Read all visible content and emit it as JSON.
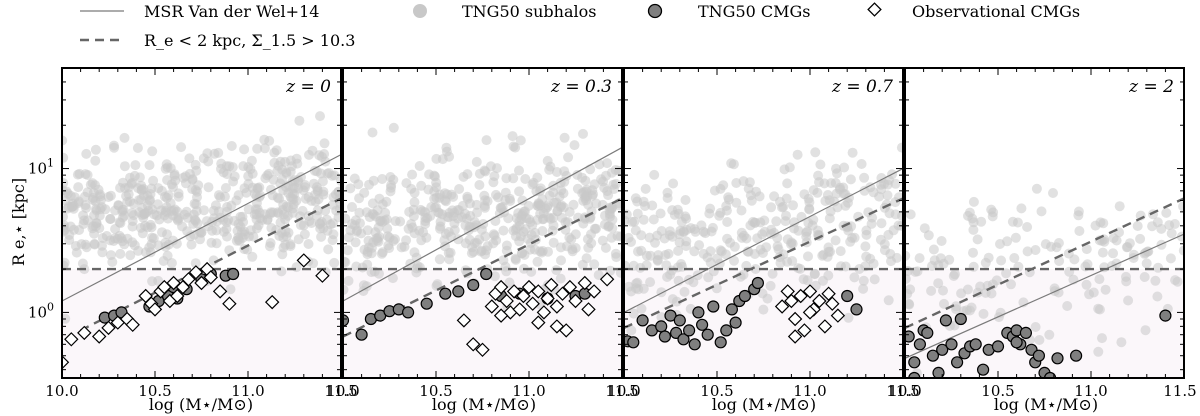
{
  "legend": {
    "msr_label": "MSR Van der Wel+14",
    "cut_label": "R_e < 2 kpc, Σ_1.5 > 10.3",
    "subhalos_label": "TNG50 subhalos",
    "tng_cmg_label": "TNG50 CMGs",
    "obs_cmg_label": "Observational CMGs"
  },
  "axes": {
    "xlabel": "log (M⋆/M⊙)",
    "ylabel": "R e,⋆ [kpc]"
  },
  "colors": {
    "subhalos": "#c8c8c8",
    "tng_cmg_fill": "#7f7f7f",
    "obs_cmg_fill": "#ffffff",
    "msr_line": "#7a7a7a",
    "cut_line": "#666666",
    "compact_region": "#fbf7fa"
  },
  "chart_data": [
    {
      "type": "scatter",
      "panel_label": "z = 0",
      "xlim": [
        10.0,
        11.5
      ],
      "ylim": [
        0.35,
        50
      ],
      "yscale": "log",
      "xticks": [
        "10.0",
        "10.5",
        "11.0"
      ],
      "yticks": [
        "10^0",
        "10^1"
      ],
      "msr_line": [
        [
          10.0,
          1.2
        ],
        [
          11.5,
          12.5
        ]
      ],
      "cut_line": [
        [
          10.1,
          0.75
        ],
        [
          11.5,
          6.2
        ]
      ],
      "tng_cmg": [
        [
          10.23,
          0.92
        ],
        [
          10.28,
          0.95
        ],
        [
          10.32,
          1.0
        ],
        [
          10.47,
          1.1
        ],
        [
          10.52,
          1.2
        ],
        [
          10.57,
          1.3
        ],
        [
          10.62,
          1.25
        ],
        [
          10.67,
          1.45
        ],
        [
          10.75,
          1.7
        ],
        [
          10.8,
          1.85
        ],
        [
          10.88,
          1.8
        ],
        [
          10.92,
          1.85
        ],
        [
          10.6,
          1.5
        ]
      ],
      "obs_cmg": [
        [
          10.0,
          0.45
        ],
        [
          10.05,
          0.65
        ],
        [
          10.12,
          0.72
        ],
        [
          10.2,
          0.68
        ],
        [
          10.25,
          0.78
        ],
        [
          10.3,
          0.85
        ],
        [
          10.35,
          0.9
        ],
        [
          10.38,
          0.82
        ],
        [
          10.45,
          1.3
        ],
        [
          10.48,
          1.15
        ],
        [
          10.5,
          1.05
        ],
        [
          10.53,
          1.4
        ],
        [
          10.55,
          1.5
        ],
        [
          10.58,
          1.2
        ],
        [
          10.6,
          1.6
        ],
        [
          10.62,
          1.3
        ],
        [
          10.65,
          1.5
        ],
        [
          10.68,
          1.7
        ],
        [
          10.72,
          1.9
        ],
        [
          10.75,
          1.6
        ],
        [
          10.78,
          2.0
        ],
        [
          10.8,
          1.75
        ],
        [
          10.85,
          1.4
        ],
        [
          10.9,
          1.15
        ],
        [
          11.13,
          1.18
        ],
        [
          11.3,
          2.3
        ],
        [
          11.4,
          1.8
        ]
      ]
    },
    {
      "type": "scatter",
      "panel_label": "z = 0.3",
      "xlim": [
        10.0,
        11.5
      ],
      "ylim": [
        0.35,
        50
      ],
      "yscale": "log",
      "xticks": [
        "10.0",
        "10.5",
        "11.0"
      ],
      "yticks": [
        "10^0",
        "10^1"
      ],
      "msr_line": [
        [
          10.0,
          1.2
        ],
        [
          11.5,
          14.0
        ]
      ],
      "cut_line": [
        [
          10.0,
          0.68
        ],
        [
          11.5,
          6.2
        ]
      ],
      "tng_cmg": [
        [
          10.0,
          0.88
        ],
        [
          10.1,
          0.7
        ],
        [
          10.15,
          0.9
        ],
        [
          10.2,
          0.95
        ],
        [
          10.25,
          1.02
        ],
        [
          10.3,
          1.05
        ],
        [
          10.35,
          1.0
        ],
        [
          10.45,
          1.15
        ],
        [
          10.55,
          1.35
        ],
        [
          10.62,
          1.4
        ],
        [
          10.7,
          1.55
        ],
        [
          10.77,
          1.85
        ],
        [
          10.85,
          1.3
        ],
        [
          10.95,
          1.35
        ],
        [
          11.1,
          1.25
        ],
        [
          11.25,
          1.3
        ],
        [
          11.3,
          1.35
        ]
      ],
      "obs_cmg": [
        [
          10.65,
          0.88
        ],
        [
          10.7,
          0.6
        ],
        [
          10.75,
          0.55
        ],
        [
          10.8,
          1.1
        ],
        [
          10.82,
          1.35
        ],
        [
          10.85,
          1.5
        ],
        [
          10.88,
          1.2
        ],
        [
          10.9,
          1.0
        ],
        [
          10.92,
          1.4
        ],
        [
          10.95,
          1.05
        ],
        [
          10.97,
          1.3
        ],
        [
          11.0,
          1.5
        ],
        [
          11.02,
          1.15
        ],
        [
          11.05,
          1.4
        ],
        [
          11.08,
          1.0
        ],
        [
          11.1,
          1.25
        ],
        [
          11.12,
          1.55
        ],
        [
          11.15,
          1.1
        ],
        [
          11.18,
          1.35
        ],
        [
          11.2,
          0.75
        ],
        [
          11.22,
          1.5
        ],
        [
          11.25,
          1.2
        ],
        [
          11.3,
          1.6
        ],
        [
          11.32,
          1.05
        ],
        [
          11.35,
          1.4
        ],
        [
          11.42,
          1.7
        ],
        [
          10.85,
          0.95
        ],
        [
          11.05,
          0.85
        ],
        [
          11.15,
          0.8
        ]
      ]
    },
    {
      "type": "scatter",
      "panel_label": "z = 0.7",
      "xlim": [
        10.0,
        11.5
      ],
      "ylim": [
        0.35,
        50
      ],
      "yscale": "log",
      "xticks": [
        "10.0",
        "10.5",
        "11.0"
      ],
      "yticks": [
        "10^0",
        "10^1"
      ],
      "msr_line": [
        [
          10.0,
          1.0
        ],
        [
          11.5,
          10.0
        ]
      ],
      "cut_line": [
        [
          10.0,
          0.78
        ],
        [
          11.5,
          6.2
        ]
      ],
      "tng_cmg": [
        [
          10.02,
          0.63
        ],
        [
          10.05,
          0.62
        ],
        [
          10.1,
          0.88
        ],
        [
          10.15,
          0.75
        ],
        [
          10.2,
          0.8
        ],
        [
          10.22,
          0.68
        ],
        [
          10.25,
          0.95
        ],
        [
          10.28,
          0.72
        ],
        [
          10.3,
          0.88
        ],
        [
          10.32,
          0.65
        ],
        [
          10.35,
          0.75
        ],
        [
          10.38,
          0.6
        ],
        [
          10.4,
          1.0
        ],
        [
          10.42,
          0.82
        ],
        [
          10.45,
          0.7
        ],
        [
          10.48,
          1.1
        ],
        [
          10.52,
          0.62
        ],
        [
          10.55,
          0.75
        ],
        [
          10.58,
          1.05
        ],
        [
          10.62,
          1.2
        ],
        [
          10.65,
          1.3
        ],
        [
          10.7,
          1.45
        ],
        [
          10.72,
          1.6
        ],
        [
          10.6,
          0.85
        ],
        [
          11.2,
          1.3
        ],
        [
          11.25,
          1.05
        ]
      ],
      "obs_cmg": [
        [
          10.85,
          1.1
        ],
        [
          10.88,
          1.4
        ],
        [
          10.9,
          1.2
        ],
        [
          10.92,
          0.9
        ],
        [
          10.95,
          1.3
        ],
        [
          10.97,
          0.75
        ],
        [
          11.0,
          1.4
        ],
        [
          11.02,
          1.05
        ],
        [
          11.05,
          1.2
        ],
        [
          11.08,
          0.8
        ],
        [
          10.92,
          0.68
        ],
        [
          11.1,
          1.35
        ],
        [
          11.12,
          1.15
        ],
        [
          11.15,
          0.95
        ],
        [
          11.0,
          1.0
        ]
      ]
    },
    {
      "type": "scatter",
      "panel_label": "z = 2",
      "xlim": [
        10.0,
        11.5
      ],
      "ylim": [
        0.35,
        50
      ],
      "yscale": "log",
      "xticks": [
        "10.0",
        "10.5",
        "11.0"
      ],
      "yticks": [
        "10^0",
        "10^1"
      ],
      "msr_line": [
        [
          10.0,
          0.48
        ],
        [
          11.5,
          3.5
        ]
      ],
      "cut_line": [
        [
          10.0,
          0.78
        ],
        [
          11.5,
          6.2
        ]
      ],
      "tng_cmg": [
        [
          10.02,
          0.68
        ],
        [
          10.05,
          0.45
        ],
        [
          10.05,
          0.35
        ],
        [
          10.08,
          0.6
        ],
        [
          10.1,
          0.75
        ],
        [
          10.12,
          0.72
        ],
        [
          10.15,
          0.5
        ],
        [
          10.18,
          0.38
        ],
        [
          10.2,
          0.55
        ],
        [
          10.22,
          0.88
        ],
        [
          10.25,
          0.6
        ],
        [
          10.28,
          0.45
        ],
        [
          10.3,
          0.9
        ],
        [
          10.32,
          0.52
        ],
        [
          10.35,
          0.58
        ],
        [
          10.38,
          0.6
        ],
        [
          10.42,
          0.4
        ],
        [
          10.45,
          0.55
        ],
        [
          10.5,
          0.58
        ],
        [
          10.55,
          0.72
        ],
        [
          10.58,
          0.68
        ],
        [
          10.6,
          0.75
        ],
        [
          10.62,
          0.6
        ],
        [
          10.65,
          0.72
        ],
        [
          10.68,
          0.55
        ],
        [
          10.7,
          0.45
        ],
        [
          10.72,
          0.5
        ],
        [
          10.75,
          0.38
        ],
        [
          10.78,
          0.35
        ],
        [
          10.82,
          0.48
        ],
        [
          10.92,
          0.5
        ],
        [
          11.4,
          0.95
        ],
        [
          10.6,
          0.62
        ]
      ],
      "obs_cmg": []
    }
  ]
}
